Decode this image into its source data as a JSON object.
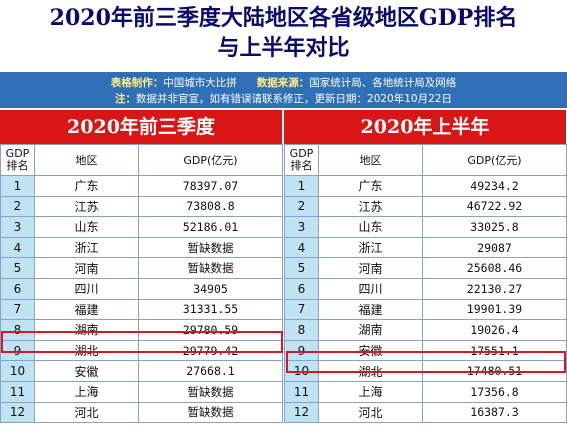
{
  "title": {
    "line1": "2020年前三季度大陆地区各省级地区GDP排名",
    "line2": "与上半年对比"
  },
  "info": {
    "maker_label": "表格制作：",
    "maker": "中国城市大比拼",
    "source_label": "数据来源：",
    "source": "国家统计局、各地统计局及网络",
    "note_label": "注：",
    "note": "数据并非官宣，如有错误请联系修正，更新日期：2020年10月22日"
  },
  "left": {
    "header": "2020年前三季度",
    "col_rank_1": "GDP",
    "col_rank_2": "排名",
    "col_region": "地区",
    "col_gdp": "GDP(亿元)",
    "rows": [
      {
        "rank": "1",
        "region": "广东",
        "gdp": "78397.07"
      },
      {
        "rank": "2",
        "region": "江苏",
        "gdp": "73808.8"
      },
      {
        "rank": "3",
        "region": "山东",
        "gdp": "52186.01"
      },
      {
        "rank": "4",
        "region": "浙江",
        "gdp": "暂缺数据"
      },
      {
        "rank": "5",
        "region": "河南",
        "gdp": "暂缺数据"
      },
      {
        "rank": "6",
        "region": "四川",
        "gdp": "34905"
      },
      {
        "rank": "7",
        "region": "福建",
        "gdp": "31331.55"
      },
      {
        "rank": "8",
        "region": "湖南",
        "gdp": "29780.59"
      },
      {
        "rank": "9",
        "region": "湖北",
        "gdp": "29779.42"
      },
      {
        "rank": "10",
        "region": "安徽",
        "gdp": "27668.1"
      },
      {
        "rank": "11",
        "region": "上海",
        "gdp": "暂缺数据"
      },
      {
        "rank": "12",
        "region": "河北",
        "gdp": "暂缺数据"
      }
    ]
  },
  "right": {
    "header": "2020年上半年",
    "col_rank_1": "GDP",
    "col_rank_2": "排名",
    "col_region": "地区",
    "col_gdp": "GDP(亿元)",
    "rows": [
      {
        "rank": "1",
        "region": "广东",
        "gdp": "49234.2"
      },
      {
        "rank": "2",
        "region": "江苏",
        "gdp": "46722.92"
      },
      {
        "rank": "3",
        "region": "山东",
        "gdp": "33025.8"
      },
      {
        "rank": "4",
        "region": "浙江",
        "gdp": "29087"
      },
      {
        "rank": "5",
        "region": "河南",
        "gdp": "25608.46"
      },
      {
        "rank": "6",
        "region": "四川",
        "gdp": "22130.27"
      },
      {
        "rank": "7",
        "region": "福建",
        "gdp": "19901.39"
      },
      {
        "rank": "8",
        "region": "湖南",
        "gdp": "19026.4"
      },
      {
        "rank": "9",
        "region": "安徽",
        "gdp": "17551.1"
      },
      {
        "rank": "10",
        "region": "湖北",
        "gdp": "17480.51"
      },
      {
        "rank": "11",
        "region": "上海",
        "gdp": "17356.8"
      },
      {
        "rank": "12",
        "region": "河北",
        "gdp": "16387.3"
      }
    ]
  },
  "colors": {
    "title": "#0a0a6a",
    "info_bg": "#2f6fb6",
    "header_bg": "#d91616",
    "rank_bg": "#bfe3f2",
    "highlight": "#d31a2a"
  }
}
